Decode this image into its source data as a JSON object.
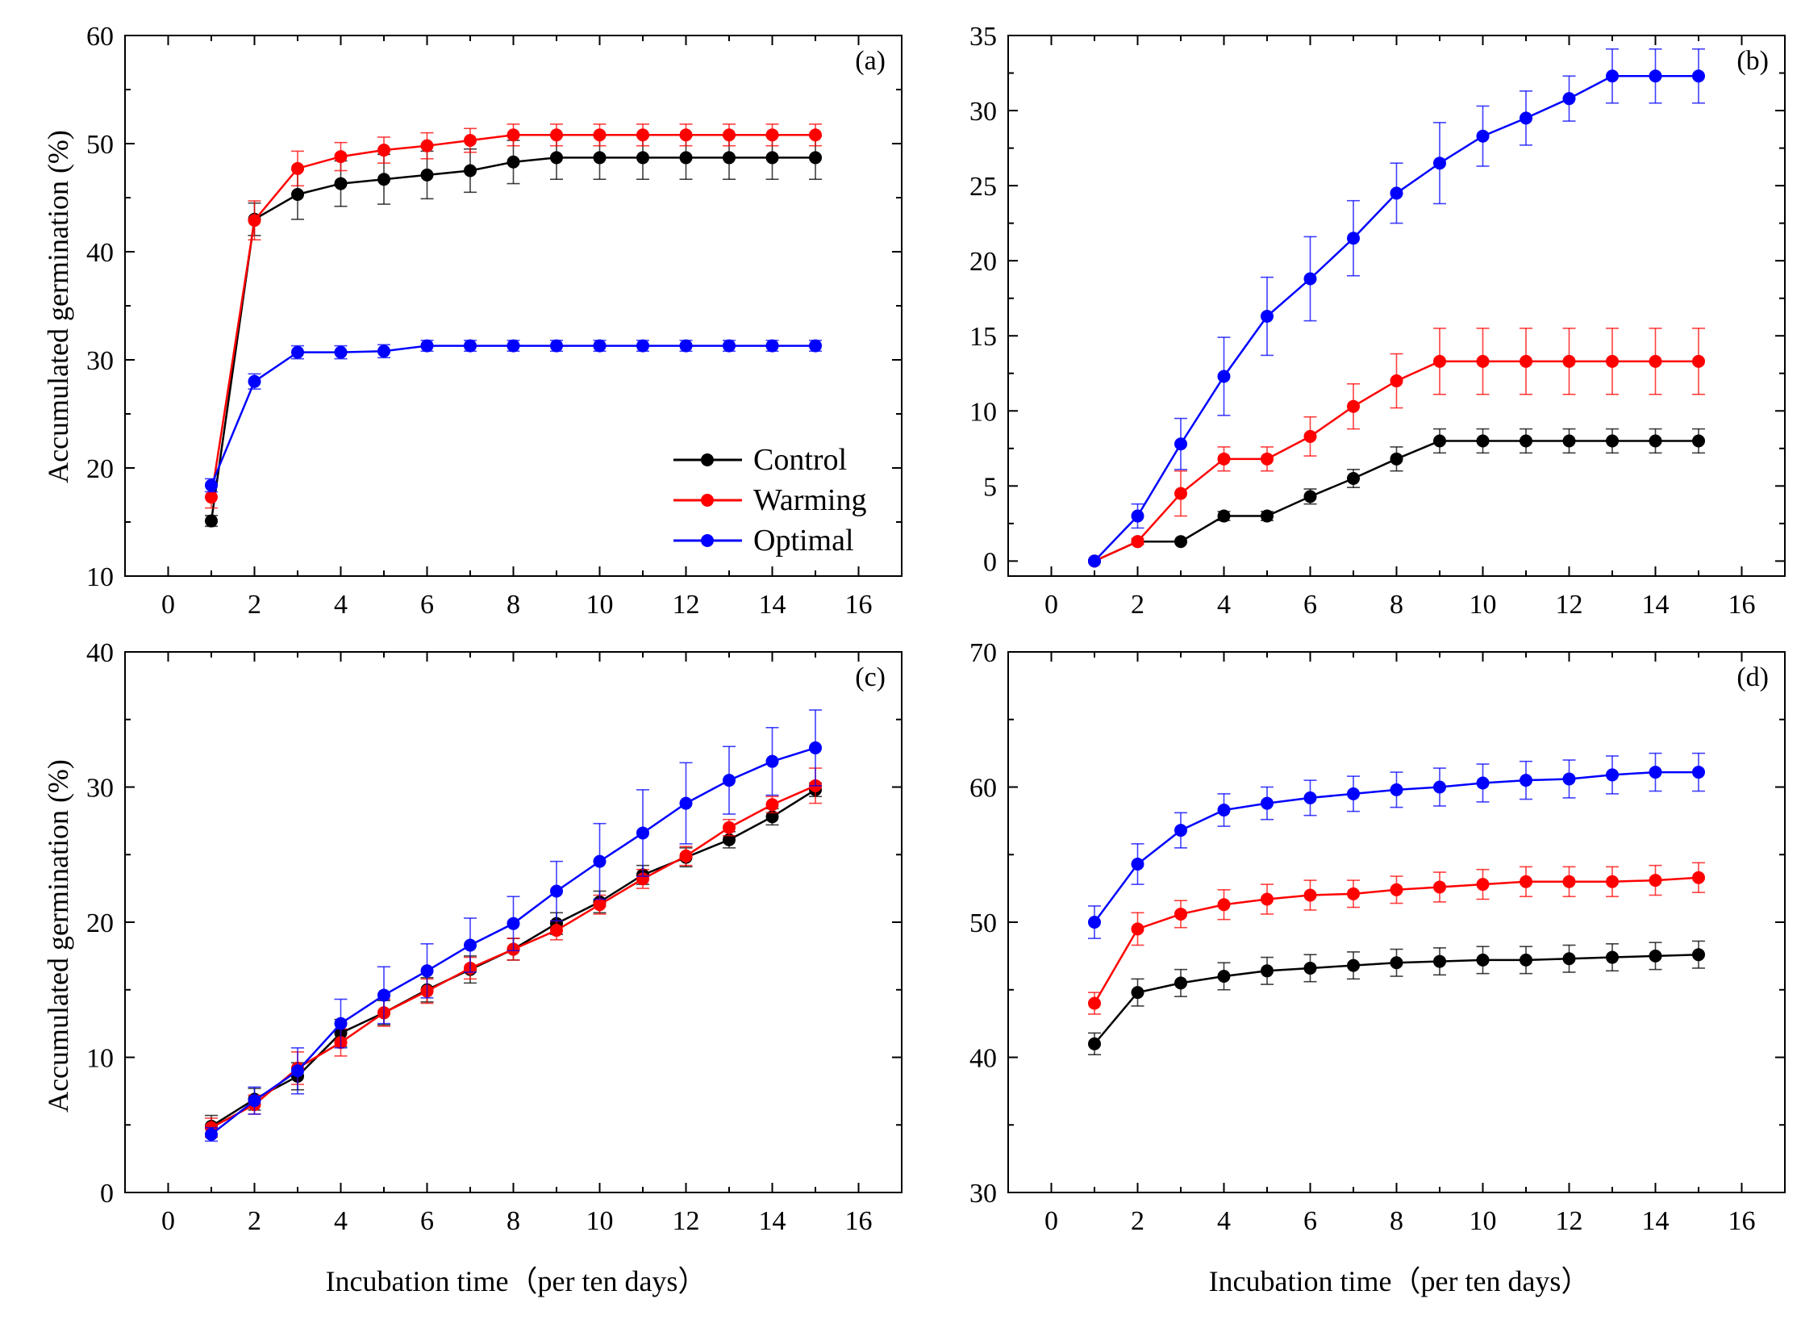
{
  "figure": {
    "xlabel": "Incubation time（per ten days）",
    "ylabel": "Accumulated germination (%)"
  },
  "legend": [
    {
      "name": "Control",
      "color": "#000000"
    },
    {
      "name": "Warming",
      "color": "#ff0000"
    },
    {
      "name": "Optimal",
      "color": "#0000ff"
    }
  ],
  "chart_data": [
    {
      "type": "line",
      "label": "(a)",
      "xlim": [
        -1,
        17
      ],
      "ylim": [
        10,
        60
      ],
      "xticks": [
        0,
        2,
        4,
        6,
        8,
        10,
        12,
        14,
        16
      ],
      "yticks": [
        10,
        20,
        30,
        40,
        50,
        60
      ],
      "x": [
        1,
        2,
        3,
        4,
        5,
        6,
        7,
        8,
        9,
        10,
        11,
        12,
        13,
        14,
        15
      ],
      "series": [
        {
          "name": "Control",
          "color": "#000000",
          "values": [
            15.1,
            43,
            45.3,
            46.3,
            46.7,
            47.1,
            47.5,
            48.3,
            48.7,
            48.7,
            48.7,
            48.7,
            48.7,
            48.7,
            48.7
          ],
          "errors": [
            0.5,
            1.5,
            2.3,
            2.1,
            2.3,
            2.2,
            2.0,
            2.0,
            2.0,
            2.0,
            2.0,
            2.0,
            2.0,
            2.0,
            2.0
          ]
        },
        {
          "name": "Warming",
          "color": "#ff0000",
          "values": [
            17.3,
            42.9,
            47.7,
            48.8,
            49.4,
            49.8,
            50.3,
            50.8,
            50.8,
            50.8,
            50.8,
            50.8,
            50.8,
            50.8,
            50.8
          ],
          "errors": [
            1.0,
            1.8,
            1.6,
            1.3,
            1.2,
            1.2,
            1.1,
            1.0,
            1.0,
            1.0,
            1.0,
            1.0,
            1.0,
            1.0,
            1.0
          ]
        },
        {
          "name": "Optimal",
          "color": "#0000ff",
          "values": [
            18.4,
            28,
            30.7,
            30.7,
            30.8,
            31.3,
            31.3,
            31.3,
            31.3,
            31.3,
            31.3,
            31.3,
            31.3,
            31.3,
            31.3
          ],
          "errors": [
            0.6,
            0.7,
            0.6,
            0.6,
            0.6,
            0.5,
            0.5,
            0.5,
            0.5,
            0.5,
            0.5,
            0.5,
            0.5,
            0.5,
            0.5
          ]
        }
      ]
    },
    {
      "type": "line",
      "label": "(b)",
      "xlim": [
        -1,
        17
      ],
      "ylim": [
        -1,
        35
      ],
      "xticks": [
        0,
        2,
        4,
        6,
        8,
        10,
        12,
        14,
        16
      ],
      "yticks": [
        0,
        5,
        10,
        15,
        20,
        25,
        30,
        35
      ],
      "x": [
        1,
        2,
        3,
        4,
        5,
        6,
        7,
        8,
        9,
        10,
        11,
        12,
        13,
        14,
        15
      ],
      "series": [
        {
          "name": "Control",
          "color": "#000000",
          "values": [
            0,
            1.3,
            1.3,
            3,
            3,
            4.3,
            5.5,
            6.8,
            8,
            8,
            8,
            8,
            8,
            8,
            8
          ],
          "errors": [
            0,
            0,
            0,
            0.3,
            0.3,
            0.5,
            0.6,
            0.8,
            0.8,
            0.8,
            0.8,
            0.8,
            0.8,
            0.8,
            0.8
          ]
        },
        {
          "name": "Warming",
          "color": "#ff0000",
          "values": [
            0,
            1.3,
            4.5,
            6.8,
            6.8,
            8.3,
            10.3,
            12,
            13.3,
            13.3,
            13.3,
            13.3,
            13.3,
            13.3,
            13.3
          ],
          "errors": [
            0,
            0.2,
            1.5,
            0.8,
            0.8,
            1.3,
            1.5,
            1.8,
            2.2,
            2.2,
            2.2,
            2.2,
            2.2,
            2.2,
            2.2
          ]
        },
        {
          "name": "Optimal",
          "color": "#0000ff",
          "values": [
            0,
            3,
            7.8,
            12.3,
            16.3,
            18.8,
            21.5,
            24.5,
            26.5,
            28.3,
            29.5,
            30.8,
            32.3,
            32.3,
            32.3
          ],
          "errors": [
            0,
            0.8,
            1.7,
            2.6,
            2.6,
            2.8,
            2.5,
            2.0,
            2.7,
            2.0,
            1.8,
            1.5,
            1.8,
            1.8,
            1.8
          ]
        }
      ]
    },
    {
      "type": "line",
      "label": "(c)",
      "xlim": [
        -1,
        17
      ],
      "ylim": [
        0,
        40
      ],
      "xticks": [
        0,
        2,
        4,
        6,
        8,
        10,
        12,
        14,
        16
      ],
      "yticks": [
        0,
        10,
        20,
        30,
        40
      ],
      "x": [
        1,
        2,
        3,
        4,
        5,
        6,
        7,
        8,
        9,
        10,
        11,
        12,
        13,
        14,
        15
      ],
      "series": [
        {
          "name": "Control",
          "color": "#000000",
          "values": [
            4.9,
            6.9,
            8.6,
            11.8,
            13.3,
            15,
            16.5,
            18,
            19.9,
            21.5,
            23.5,
            24.8,
            26.1,
            27.8,
            29.8
          ],
          "errors": [
            0.8,
            0.8,
            1.0,
            1.0,
            0.9,
            0.9,
            1.0,
            0.8,
            0.8,
            0.8,
            0.7,
            0.7,
            0.6,
            0.6,
            0.5
          ]
        },
        {
          "name": "Warming",
          "color": "#ff0000",
          "values": [
            4.8,
            6.5,
            9.2,
            11.1,
            13.3,
            14.9,
            16.6,
            18,
            19.4,
            21.3,
            23.2,
            24.9,
            27,
            28.7,
            30.1
          ],
          "errors": [
            0.7,
            0.7,
            1.2,
            1.0,
            1.0,
            0.9,
            0.8,
            0.8,
            0.7,
            0.7,
            0.7,
            0.7,
            0.6,
            0.6,
            1.3
          ]
        },
        {
          "name": "Optimal",
          "color": "#0000ff",
          "values": [
            4.3,
            6.8,
            9,
            12.5,
            14.6,
            16.4,
            18.3,
            19.9,
            22.3,
            24.5,
            26.6,
            28.8,
            30.5,
            31.9,
            32.9
          ],
          "errors": [
            0.5,
            1.0,
            1.7,
            1.8,
            2.1,
            2.0,
            2.0,
            2.0,
            2.2,
            2.8,
            3.2,
            3.0,
            2.5,
            2.5,
            2.8
          ]
        }
      ]
    },
    {
      "type": "line",
      "label": "(d)",
      "xlim": [
        -1,
        17
      ],
      "ylim": [
        30,
        70
      ],
      "xticks": [
        0,
        2,
        4,
        6,
        8,
        10,
        12,
        14,
        16
      ],
      "yticks": [
        30,
        40,
        50,
        60,
        70
      ],
      "x": [
        1,
        2,
        3,
        4,
        5,
        6,
        7,
        8,
        9,
        10,
        11,
        12,
        13,
        14,
        15
      ],
      "series": [
        {
          "name": "Control",
          "color": "#000000",
          "values": [
            41,
            44.8,
            45.5,
            46,
            46.4,
            46.6,
            46.8,
            47,
            47.1,
            47.2,
            47.2,
            47.3,
            47.4,
            47.5,
            47.6
          ],
          "errors": [
            0.8,
            1.0,
            1.0,
            1.0,
            1.0,
            1.0,
            1.0,
            1.0,
            1.0,
            1.0,
            1.0,
            1.0,
            1.0,
            1.0,
            1.0
          ]
        },
        {
          "name": "Warming",
          "color": "#ff0000",
          "values": [
            44,
            49.5,
            50.6,
            51.3,
            51.7,
            52,
            52.1,
            52.4,
            52.6,
            52.8,
            53,
            53,
            53,
            53.1,
            53.3
          ],
          "errors": [
            0.8,
            1.2,
            1.0,
            1.1,
            1.1,
            1.1,
            1.0,
            1.0,
            1.1,
            1.1,
            1.1,
            1.1,
            1.1,
            1.1,
            1.1
          ]
        },
        {
          "name": "Optimal",
          "color": "#0000ff",
          "values": [
            50,
            54.3,
            56.8,
            58.3,
            58.8,
            59.2,
            59.5,
            59.8,
            60,
            60.3,
            60.5,
            60.6,
            60.9,
            61.1,
            61.1
          ],
          "errors": [
            1.2,
            1.5,
            1.3,
            1.2,
            1.2,
            1.3,
            1.3,
            1.3,
            1.4,
            1.4,
            1.4,
            1.4,
            1.4,
            1.4,
            1.4
          ]
        }
      ]
    }
  ]
}
